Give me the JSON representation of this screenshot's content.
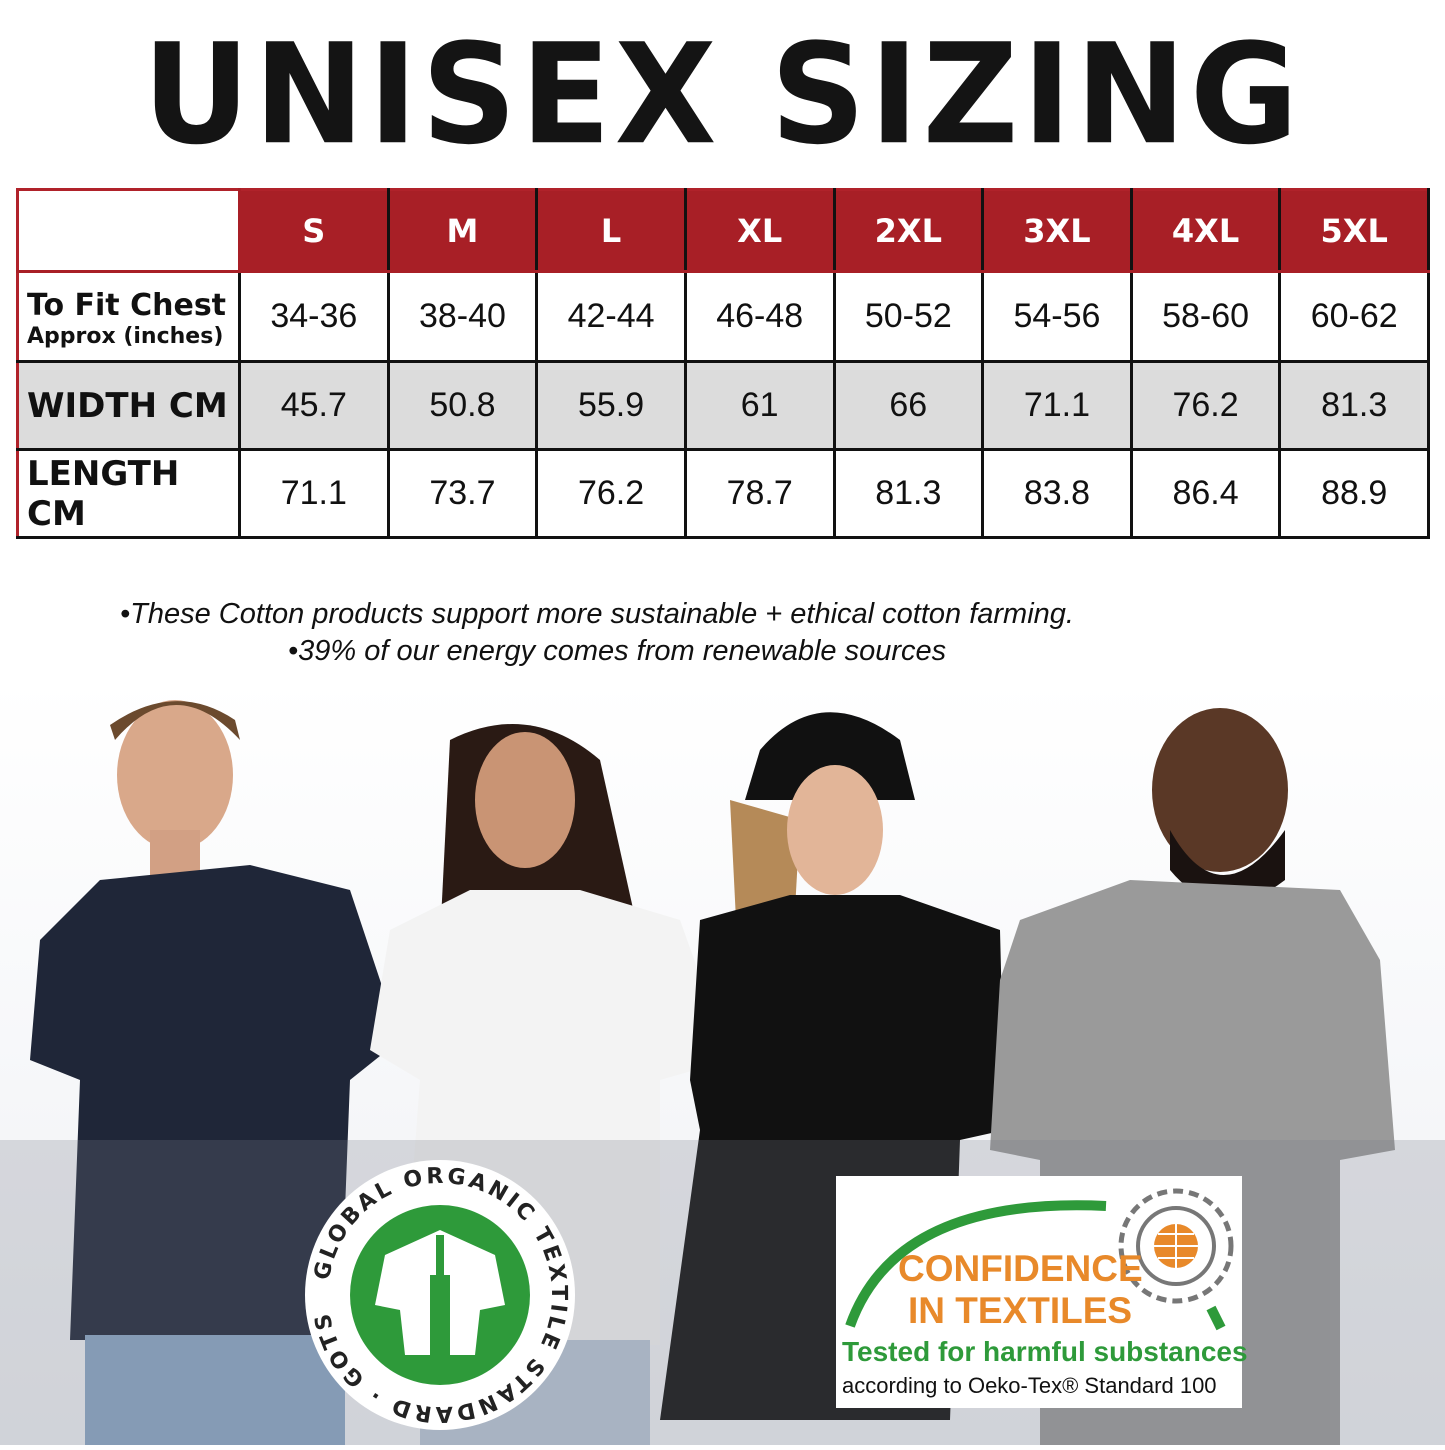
{
  "title": "UNISEX SIZING",
  "table": {
    "sizes": [
      "S",
      "M",
      "L",
      "XL",
      "2XL",
      "3XL",
      "4XL",
      "5XL"
    ],
    "rows": [
      {
        "label": "To Fit Chest",
        "sublabel": "Approx (inches)",
        "values": [
          "34-36",
          "38-40",
          "42-44",
          "46-48",
          "50-52",
          "54-56",
          "58-60",
          "60-62"
        ]
      },
      {
        "label": "WIDTH CM",
        "values": [
          "45.7",
          "50.8",
          "55.9",
          "61",
          "66",
          "71.1",
          "76.2",
          "81.3"
        ]
      },
      {
        "label": "LENGTH CM",
        "values": [
          "71.1",
          "73.7",
          "76.2",
          "78.7",
          "81.3",
          "83.8",
          "86.4",
          "88.9"
        ]
      }
    ]
  },
  "notes": [
    "•These Cotton products support more sustainable + ethical cotton farming.",
    "•39% of our energy comes from renewable sources"
  ],
  "gots": {
    "ring_text": "GLOBAL ORGANIC TEXTILE STANDARD · GOTS ·",
    "color": "#2e9a3a"
  },
  "oeko": {
    "line1": "CONFIDENCE",
    "line2": "IN TEXTILES",
    "line3": "Tested for harmful substances",
    "line4": "according to Oeko-Tex® Standard 100",
    "orange": "#e8892a",
    "green": "#2e9a3a"
  },
  "colors": {
    "header_red": "#a81f26",
    "row_gray": "#dcdcdc"
  }
}
